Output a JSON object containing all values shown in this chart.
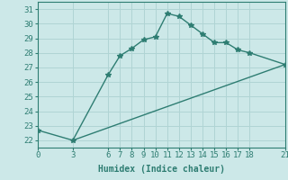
{
  "line1_x": [
    0,
    3,
    6,
    7,
    8,
    9,
    10,
    11,
    12,
    13,
    14,
    15,
    16,
    17,
    18,
    21
  ],
  "line1_y": [
    22.7,
    22.0,
    26.5,
    27.8,
    28.3,
    28.9,
    29.1,
    30.7,
    30.5,
    29.9,
    29.3,
    28.7,
    28.7,
    28.2,
    28.0,
    27.2
  ],
  "line2_x": [
    3,
    21
  ],
  "line2_y": [
    22.0,
    27.2
  ],
  "color": "#2e7d72",
  "bg_color": "#cce8e8",
  "grid_color": "#b0d4d4",
  "xlabel": "Humidex (Indice chaleur)",
  "xticks": [
    0,
    3,
    6,
    7,
    8,
    9,
    10,
    11,
    12,
    13,
    14,
    15,
    16,
    17,
    18,
    21
  ],
  "yticks": [
    22,
    23,
    24,
    25,
    26,
    27,
    28,
    29,
    30,
    31
  ],
  "xlim": [
    0,
    21
  ],
  "ylim": [
    21.5,
    31.5
  ],
  "marker": "*",
  "markersize": 4,
  "linewidth": 1.0,
  "font_family": "monospace",
  "xlabel_fontsize": 7,
  "tick_fontsize": 6.5
}
